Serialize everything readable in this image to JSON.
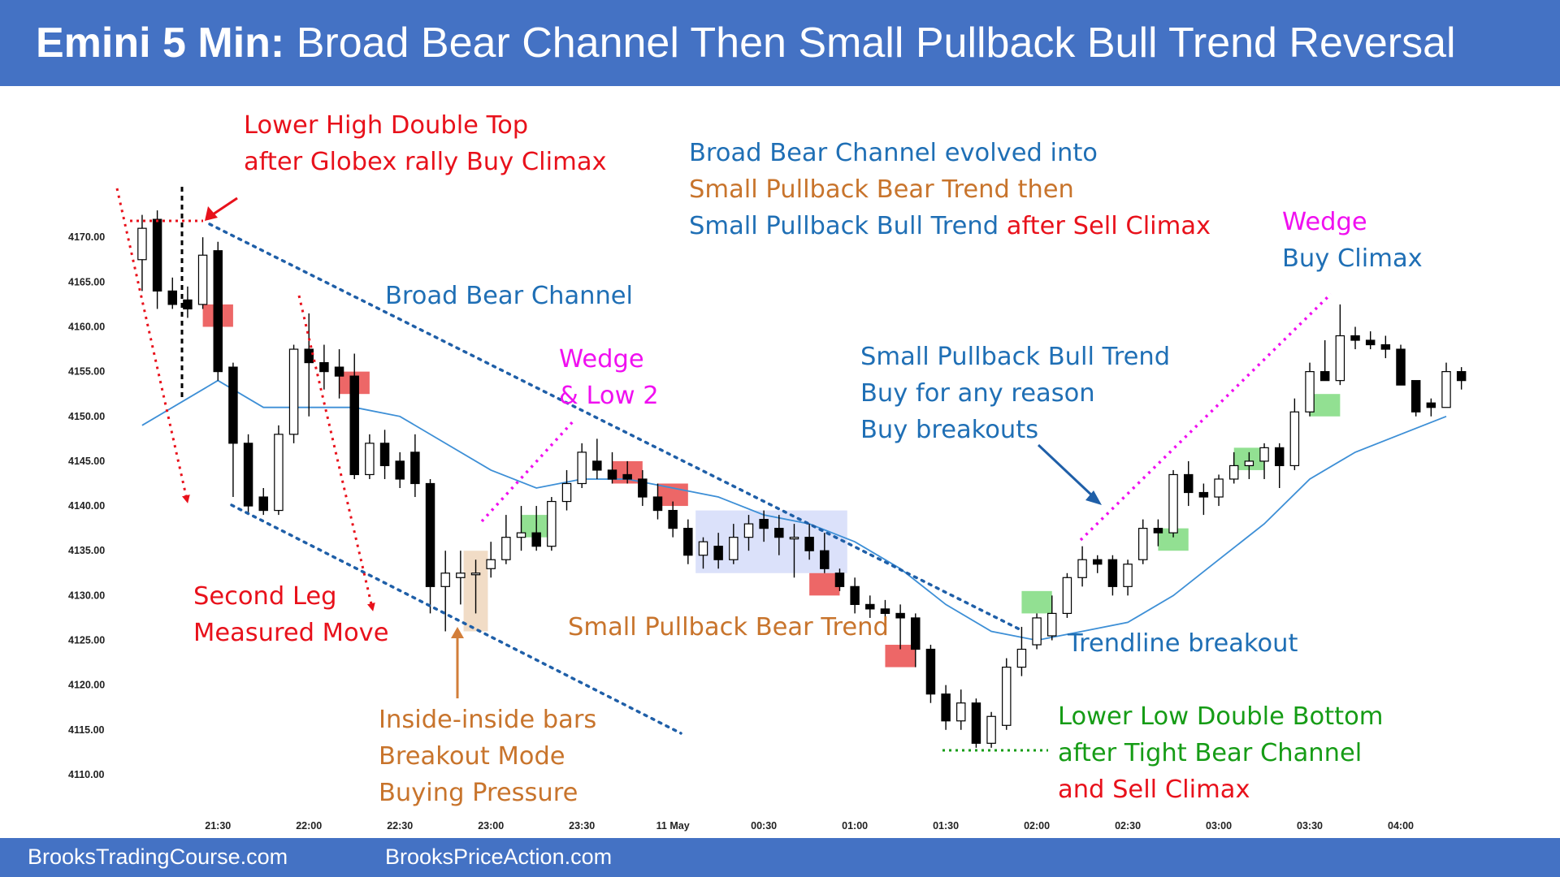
{
  "header": {
    "title_prefix": "Emini 5 Min:",
    "title_rest": " Broad Bear Channel Then Small Pullback Bull Trend Reversal"
  },
  "footer": {
    "left_link": "BrooksTradingCourse.com",
    "right_link": "BrooksPriceAction.com"
  },
  "colors": {
    "brand": "#4472c4",
    "red": "#e8111b",
    "blue": "#1f6fb5",
    "orange": "#c8742c",
    "magenta": "#f010f0",
    "green": "#169c16",
    "ema": "#3d8fd6",
    "bull_bar": "#ffffff",
    "bear_bar": "#000000"
  },
  "chart_data": {
    "type": "candlestick",
    "y_ticks": [
      "4170.00",
      "4165.00",
      "4160.00",
      "4155.00",
      "4150.00",
      "4145.00",
      "4140.00",
      "4135.00",
      "4130.00",
      "4125.00",
      "4120.00",
      "4115.00",
      "4110.00"
    ],
    "x_ticks": [
      {
        "bar": 5,
        "label": "21:30"
      },
      {
        "bar": 11,
        "label": "22:00"
      },
      {
        "bar": 17,
        "label": "22:30"
      },
      {
        "bar": 23,
        "label": "23:00"
      },
      {
        "bar": 29,
        "label": "23:30"
      },
      {
        "bar": 35,
        "label": "11 May"
      },
      {
        "bar": 41,
        "label": "00:30"
      },
      {
        "bar": 47,
        "label": "01:00"
      },
      {
        "bar": 53,
        "label": "01:30"
      },
      {
        "bar": 59,
        "label": "02:00"
      },
      {
        "bar": 65,
        "label": "02:30"
      },
      {
        "bar": 71,
        "label": "03:00"
      },
      {
        "bar": 77,
        "label": "03:30"
      },
      {
        "bar": 83,
        "label": "04:00"
      }
    ],
    "ylim": [
      4108,
      4176
    ],
    "xlim": [
      -0.8,
      87.5
    ],
    "bars": [
      {
        "o": 4167.5,
        "h": 4172.5,
        "l": 4164.0,
        "c": 4171.0
      },
      {
        "o": 4172.0,
        "h": 4173.0,
        "l": 4162.0,
        "c": 4164.0
      },
      {
        "o": 4164.0,
        "h": 4165.5,
        "l": 4162.0,
        "c": 4162.5
      },
      {
        "o": 4163.0,
        "h": 4164.5,
        "l": 4161.0,
        "c": 4162.0
      },
      {
        "o": 4162.5,
        "h": 4170.0,
        "l": 4162.0,
        "c": 4168.0
      },
      {
        "o": 4168.5,
        "h": 4169.5,
        "l": 4154.0,
        "c": 4155.0
      },
      {
        "o": 4155.5,
        "h": 4156.0,
        "l": 4141.0,
        "c": 4147.0
      },
      {
        "o": 4147.0,
        "h": 4148.0,
        "l": 4139.0,
        "c": 4140.0
      },
      {
        "o": 4141.0,
        "h": 4142.0,
        "l": 4139.0,
        "c": 4139.5
      },
      {
        "o": 4139.5,
        "h": 4149.0,
        "l": 4139.0,
        "c": 4148.0
      },
      {
        "o": 4148.0,
        "h": 4158.0,
        "l": 4147.0,
        "c": 4157.5
      },
      {
        "o": 4157.5,
        "h": 4161.5,
        "l": 4150.0,
        "c": 4156.0
      },
      {
        "o": 4156.0,
        "h": 4158.0,
        "l": 4153.0,
        "c": 4155.0
      },
      {
        "o": 4155.5,
        "h": 4157.5,
        "l": 4152.0,
        "c": 4154.5
      },
      {
        "o": 4154.5,
        "h": 4157.0,
        "l": 4143.0,
        "c": 4143.5
      },
      {
        "o": 4143.5,
        "h": 4148.0,
        "l": 4143.0,
        "c": 4147.0
      },
      {
        "o": 4147.0,
        "h": 4148.5,
        "l": 4143.0,
        "c": 4144.5
      },
      {
        "o": 4145.0,
        "h": 4146.0,
        "l": 4142.0,
        "c": 4143.0
      },
      {
        "o": 4146.0,
        "h": 4148.0,
        "l": 4141.0,
        "c": 4142.5
      },
      {
        "o": 4142.5,
        "h": 4143.0,
        "l": 4128.0,
        "c": 4131.0
      },
      {
        "o": 4131.0,
        "h": 4135.0,
        "l": 4126.0,
        "c": 4132.5
      },
      {
        "o": 4132.0,
        "h": 4135.0,
        "l": 4129.0,
        "c": 4132.5
      },
      {
        "o": 4132.5,
        "h": 4134.0,
        "l": 4128.0,
        "c": 4132.5
      },
      {
        "o": 4133.0,
        "h": 4136.0,
        "l": 4132.0,
        "c": 4134.0
      },
      {
        "o": 4134.0,
        "h": 4139.0,
        "l": 4133.5,
        "c": 4136.5
      },
      {
        "o": 4136.5,
        "h": 4140.0,
        "l": 4135.0,
        "c": 4137.0
      },
      {
        "o": 4137.0,
        "h": 4140.0,
        "l": 4135.0,
        "c": 4135.5
      },
      {
        "o": 4135.5,
        "h": 4141.0,
        "l": 4135.0,
        "c": 4140.5
      },
      {
        "o": 4140.5,
        "h": 4144.0,
        "l": 4139.5,
        "c": 4142.5
      },
      {
        "o": 4142.5,
        "h": 4147.0,
        "l": 4142.0,
        "c": 4146.0
      },
      {
        "o": 4145.0,
        "h": 4147.5,
        "l": 4143.0,
        "c": 4144.0
      },
      {
        "o": 4144.0,
        "h": 4146.0,
        "l": 4142.5,
        "c": 4143.0
      },
      {
        "o": 4143.5,
        "h": 4145.0,
        "l": 4142.5,
        "c": 4143.0
      },
      {
        "o": 4143.0,
        "h": 4144.0,
        "l": 4140.0,
        "c": 4141.0
      },
      {
        "o": 4141.0,
        "h": 4142.5,
        "l": 4138.5,
        "c": 4139.5
      },
      {
        "o": 4139.5,
        "h": 4140.5,
        "l": 4136.5,
        "c": 4137.5
      },
      {
        "o": 4137.5,
        "h": 4138.5,
        "l": 4133.5,
        "c": 4134.5
      },
      {
        "o": 4134.5,
        "h": 4136.5,
        "l": 4133.0,
        "c": 4136.0
      },
      {
        "o": 4135.5,
        "h": 4137.0,
        "l": 4133.0,
        "c": 4134.0
      },
      {
        "o": 4134.0,
        "h": 4138.0,
        "l": 4133.5,
        "c": 4136.5
      },
      {
        "o": 4136.5,
        "h": 4139.0,
        "l": 4135.0,
        "c": 4138.0
      },
      {
        "o": 4138.5,
        "h": 4139.5,
        "l": 4136.0,
        "c": 4137.5
      },
      {
        "o": 4137.5,
        "h": 4139.0,
        "l": 4134.5,
        "c": 4136.5
      },
      {
        "o": 4136.5,
        "h": 4138.0,
        "l": 4132.0,
        "c": 4136.5
      },
      {
        "o": 4136.5,
        "h": 4138.0,
        "l": 4134.0,
        "c": 4135.0
      },
      {
        "o": 4135.0,
        "h": 4137.0,
        "l": 4132.5,
        "c": 4133.0
      },
      {
        "o": 4132.5,
        "h": 4133.0,
        "l": 4130.5,
        "c": 4131.0
      },
      {
        "o": 4131.0,
        "h": 4132.0,
        "l": 4128.0,
        "c": 4129.0
      },
      {
        "o": 4129.0,
        "h": 4130.0,
        "l": 4127.5,
        "c": 4128.5
      },
      {
        "o": 4128.5,
        "h": 4129.5,
        "l": 4126.5,
        "c": 4128.0
      },
      {
        "o": 4128.0,
        "h": 4129.0,
        "l": 4124.0,
        "c": 4127.5
      },
      {
        "o": 4127.5,
        "h": 4128.0,
        "l": 4122.0,
        "c": 4124.0
      },
      {
        "o": 4124.0,
        "h": 4124.5,
        "l": 4118.0,
        "c": 4119.0
      },
      {
        "o": 4119.0,
        "h": 4120.0,
        "l": 4115.0,
        "c": 4116.0
      },
      {
        "o": 4116.0,
        "h": 4119.5,
        "l": 4115.0,
        "c": 4118.0
      },
      {
        "o": 4118.0,
        "h": 4118.5,
        "l": 4113.0,
        "c": 4113.5
      },
      {
        "o": 4113.5,
        "h": 4117.0,
        "l": 4113.0,
        "c": 4116.5
      },
      {
        "o": 4115.5,
        "h": 4123.0,
        "l": 4115.0,
        "c": 4122.0
      },
      {
        "o": 4122.0,
        "h": 4126.5,
        "l": 4121.0,
        "c": 4124.0
      },
      {
        "o": 4124.5,
        "h": 4128.0,
        "l": 4124.0,
        "c": 4127.5
      },
      {
        "o": 4125.5,
        "h": 4130.0,
        "l": 4125.0,
        "c": 4128.0
      },
      {
        "o": 4128.0,
        "h": 4132.5,
        "l": 4127.5,
        "c": 4132.0
      },
      {
        "o": 4132.0,
        "h": 4135.5,
        "l": 4131.0,
        "c": 4134.0
      },
      {
        "o": 4134.0,
        "h": 4134.5,
        "l": 4132.5,
        "c": 4133.5
      },
      {
        "o": 4134.0,
        "h": 4134.5,
        "l": 4130.0,
        "c": 4131.0
      },
      {
        "o": 4131.0,
        "h": 4134.0,
        "l": 4130.0,
        "c": 4133.5
      },
      {
        "o": 4134.0,
        "h": 4138.5,
        "l": 4133.5,
        "c": 4137.5
      },
      {
        "o": 4137.5,
        "h": 4138.5,
        "l": 4135.5,
        "c": 4137.0
      },
      {
        "o": 4137.0,
        "h": 4144.0,
        "l": 4136.5,
        "c": 4143.5
      },
      {
        "o": 4143.5,
        "h": 4145.0,
        "l": 4140.0,
        "c": 4141.5
      },
      {
        "o": 4141.5,
        "h": 4142.5,
        "l": 4139.0,
        "c": 4141.0
      },
      {
        "o": 4141.0,
        "h": 4143.5,
        "l": 4140.0,
        "c": 4143.0
      },
      {
        "o": 4143.0,
        "h": 4146.0,
        "l": 4142.5,
        "c": 4144.5
      },
      {
        "o": 4144.5,
        "h": 4146.0,
        "l": 4143.0,
        "c": 4145.0
      },
      {
        "o": 4145.0,
        "h": 4147.0,
        "l": 4143.0,
        "c": 4146.5
      },
      {
        "o": 4146.5,
        "h": 4147.0,
        "l": 4142.0,
        "c": 4144.5
      },
      {
        "o": 4144.5,
        "h": 4152.0,
        "l": 4144.0,
        "c": 4150.5
      },
      {
        "o": 4150.5,
        "h": 4156.0,
        "l": 4150.0,
        "c": 4155.0
      },
      {
        "o": 4155.0,
        "h": 4158.5,
        "l": 4154.0,
        "c": 4154.0
      },
      {
        "o": 4154.0,
        "h": 4162.5,
        "l": 4153.5,
        "c": 4159.0
      },
      {
        "o": 4159.0,
        "h": 4160.0,
        "l": 4157.5,
        "c": 4158.5
      },
      {
        "o": 4158.5,
        "h": 4159.5,
        "l": 4157.5,
        "c": 4158.0
      },
      {
        "o": 4158.0,
        "h": 4159.0,
        "l": 4156.5,
        "c": 4157.5
      },
      {
        "o": 4157.5,
        "h": 4158.0,
        "l": 4154.0,
        "c": 4153.5
      },
      {
        "o": 4154.0,
        "h": 4154.0,
        "l": 4150.0,
        "c": 4150.5
      },
      {
        "o": 4151.5,
        "h": 4152.0,
        "l": 4150.0,
        "c": 4151.0
      },
      {
        "o": 4151.0,
        "h": 4156.0,
        "l": 4151.0,
        "c": 4155.0
      },
      {
        "o": 4155.0,
        "h": 4155.5,
        "l": 4153.0,
        "c": 4154.0
      }
    ],
    "ema": [
      [
        0,
        4149
      ],
      [
        3,
        4152
      ],
      [
        5,
        4154
      ],
      [
        8,
        4151
      ],
      [
        11,
        4151
      ],
      [
        14,
        4151
      ],
      [
        17,
        4150
      ],
      [
        20,
        4147
      ],
      [
        23,
        4144
      ],
      [
        26,
        4142
      ],
      [
        29,
        4143
      ],
      [
        32,
        4143
      ],
      [
        35,
        4142
      ],
      [
        38,
        4141
      ],
      [
        41,
        4139
      ],
      [
        44,
        4138
      ],
      [
        47,
        4136
      ],
      [
        50,
        4133
      ],
      [
        53,
        4129
      ],
      [
        56,
        4126
      ],
      [
        59,
        4125
      ],
      [
        62,
        4126
      ],
      [
        65,
        4127
      ],
      [
        68,
        4130
      ],
      [
        71,
        4134
      ],
      [
        74,
        4138
      ],
      [
        77,
        4143
      ],
      [
        80,
        4146
      ],
      [
        83,
        4148
      ],
      [
        86,
        4150
      ]
    ],
    "highlights": [
      {
        "bar": 5,
        "y1": 4160,
        "y2": 4162.5,
        "color": "red"
      },
      {
        "bar": 14,
        "y1": 4152.5,
        "y2": 4155,
        "color": "red"
      },
      {
        "bar": 22,
        "y1": 4126,
        "y2": 4135,
        "color": "orange"
      },
      {
        "bar": 26,
        "y1": 4136.5,
        "y2": 4139,
        "color": "green"
      },
      {
        "bar": 32,
        "y1": 4142.5,
        "y2": 4145,
        "color": "red"
      },
      {
        "bar": 35,
        "y1": 4140,
        "y2": 4142.5,
        "color": "red"
      },
      {
        "bar": 45,
        "y1": 4130,
        "y2": 4132.5,
        "color": "red"
      },
      {
        "bar": 50,
        "y1": 4122,
        "y2": 4124.5,
        "color": "red"
      },
      {
        "bar": 59,
        "y1": 4128,
        "y2": 4130.5,
        "color": "green"
      },
      {
        "bar": 68,
        "y1": 4135,
        "y2": 4137.5,
        "color": "green"
      },
      {
        "bar": 73,
        "y1": 4144,
        "y2": 4146.5,
        "color": "green"
      },
      {
        "bar": 78,
        "y1": 4150,
        "y2": 4152.5,
        "color": "green"
      }
    ],
    "tight_range": {
      "bar_from": 37,
      "bar_to": 46,
      "y1": 4132.5,
      "y2": 4139.5
    },
    "annotations": [
      {
        "lines": [
          "Lower High Double Top",
          "after Globex rally Buy Climax"
        ],
        "color": "red"
      },
      {
        "lines": [
          "Broad Bear Channel evolved into",
          "Small Pullback Bear Trend then",
          "Small Pullback Bull Trend after Sell Climax"
        ],
        "color": "mixed"
      },
      {
        "lines": [
          "Wedge",
          "Buy Climax"
        ],
        "color": "magenta/blue"
      },
      {
        "lines": [
          "Broad Bear Channel"
        ],
        "color": "blue"
      },
      {
        "lines": [
          "Wedge",
          "& Low 2"
        ],
        "color": "magenta"
      },
      {
        "lines": [
          "Small Pullback Bull Trend",
          "Buy for any reason",
          "Buy breakouts"
        ],
        "color": "blue"
      },
      {
        "lines": [
          "Second Leg",
          "Measured Move"
        ],
        "color": "red"
      },
      {
        "lines": [
          "Small Pullback Bear Trend"
        ],
        "color": "orange"
      },
      {
        "lines": [
          "Trendline breakout"
        ],
        "color": "blue"
      },
      {
        "lines": [
          "Inside-inside bars",
          "Breakout Mode",
          "Buying Pressure"
        ],
        "color": "orange"
      },
      {
        "lines": [
          "Lower Low Double Bottom",
          "after Tight Bear Channel",
          "and Sell Climax"
        ],
        "color": "green/red"
      }
    ]
  },
  "labels": {
    "lower_high": [
      "Lower High Double Top",
      "after Globex rally Buy Climax"
    ],
    "summary_1": "Broad Bear Channel evolved into",
    "summary_2": "Small Pullback Bear Trend then",
    "summary_3a": "Small Pullback Bull Trend ",
    "summary_3b": "after Sell Climax",
    "wedge_top_1": "Wedge",
    "wedge_top_2": "Buy Climax",
    "broad_bear": "Broad Bear Channel",
    "wedge_low2_1": "Wedge",
    "wedge_low2_2": "& Low 2",
    "spbt_1": "Small Pullback Bull Trend",
    "spbt_2": "Buy for any reason",
    "spbt_3": "Buy breakouts",
    "second_leg_1": "Second Leg",
    "second_leg_2": "Measured Move",
    "spbear": "Small Pullback Bear Trend",
    "trendline_bo": "Trendline breakout",
    "inside_1": "Inside-inside bars",
    "inside_2": "Breakout Mode",
    "inside_3": "Buying Pressure",
    "lldb_1": "Lower Low Double Bottom",
    "lldb_2": "after Tight Bear Channel",
    "lldb_3": "and Sell Climax"
  }
}
